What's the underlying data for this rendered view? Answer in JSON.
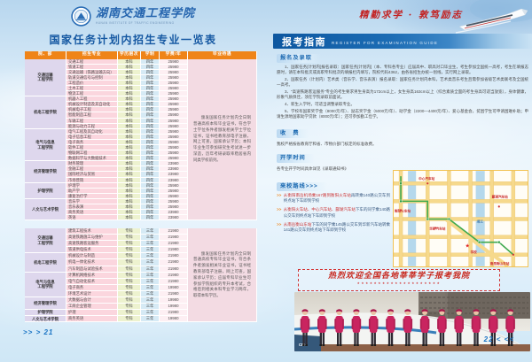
{
  "left_page": {
    "logo": {
      "name": "湖南交通工程学院",
      "subtitle": "HUNAN INSTITUTE OF TRAFFIC ENGINEERING"
    },
    "title": "国家任务计划内招生专业一览表",
    "table_headers": [
      "院、部",
      "招生专业",
      "学历层次",
      "学制",
      "学费/年",
      "毕业待遇"
    ],
    "undergrad_groups": [
      {
        "college": "交通运输\n工程学院",
        "majors": [
          [
            "交通工程",
            "本科",
            "四年",
            "25980"
          ],
          [
            "铁道工程",
            "本科",
            "四年",
            "25980"
          ],
          [
            "交通运输（铁路运输方向）",
            "本科",
            "四年",
            "25980"
          ],
          [
            "轨道交通信号与控制",
            "本科",
            "四年",
            "25980"
          ],
          [
            "工程造价",
            "本科",
            "四年",
            "25980"
          ],
          [
            "土木工程",
            "本科",
            "四年",
            "25980"
          ],
          [
            "物流工程",
            "本科",
            "四年",
            "25980"
          ]
        ]
      },
      {
        "college": "机电工程学院",
        "majors": [
          [
            "机器人工程",
            "本科",
            "四年",
            "25980"
          ],
          [
            "机械设计制造及其自动化",
            "本科",
            "四年",
            "25980"
          ],
          [
            "机械电子工程",
            "本科",
            "四年",
            "25980"
          ],
          [
            "智能制造工程",
            "本科",
            "四年",
            "25980"
          ],
          [
            "车辆工程",
            "本科",
            "四年",
            "25980"
          ],
          [
            "能源与动力工程",
            "本科",
            "四年",
            "25980"
          ]
        ]
      },
      {
        "college": "电气与信息\n工程学院",
        "majors": [
          [
            "电气工程及其自动化",
            "本科",
            "四年",
            "25980"
          ],
          [
            "电子信息工程",
            "本科",
            "四年",
            "25980"
          ],
          [
            "电子商务",
            "本科",
            "四年",
            "25980"
          ],
          [
            "软件工程",
            "本科",
            "四年",
            "25980"
          ],
          [
            "物联网工程",
            "本科",
            "四年",
            "25980"
          ],
          [
            "数据科学与大数据技术",
            "本科",
            "四年",
            "25980"
          ]
        ]
      },
      {
        "college": "经济管理学院",
        "majors": [
          [
            "财务管理",
            "本科",
            "四年",
            "23980"
          ],
          [
            "金融工程",
            "本科",
            "四年",
            "23980"
          ],
          [
            "国际经济与贸易",
            "本科",
            "四年",
            "23980"
          ],
          [
            "市场营销",
            "本科",
            "四年",
            "23980"
          ]
        ]
      },
      {
        "college": "护理学院",
        "majors": [
          [
            "护理学",
            "本科",
            "四年",
            "25980"
          ],
          [
            "助产学",
            "本科",
            "四年",
            "25980"
          ],
          [
            "康复治疗学",
            "本科",
            "四年",
            "25980"
          ]
        ]
      },
      {
        "college": "人文与艺术学院",
        "majors": [
          [
            "音乐学",
            "本科",
            "四年",
            "25980"
          ],
          [
            "音乐表演",
            "本科",
            "四年",
            "25980"
          ],
          [
            "商务英语",
            "本科",
            "四年",
            "23980"
          ],
          [
            "英语",
            "本科",
            "四年",
            "23980"
          ]
        ]
      }
    ],
    "undergrad_note": "颁发国家任务计划内全日制普通高校本科毕业证书，符合学士学位条件者颁发相关学士学位证书，证书经教育部电子注册，网上可查，国家承认学历；本科毕业生可参加研究生考试进一步深造，历年考研录取率稳居省内同类学校前列。",
    "junior_groups": [
      {
        "college": "交通运输\n工程学院",
        "majors": [
          [
            "建筑工程技术",
            "专科",
            "三年",
            "21980"
          ],
          [
            "高速铁路施工与维护",
            "专科",
            "三年",
            "21980"
          ],
          [
            "高速铁路客运服务",
            "专科",
            "三年",
            "21980"
          ],
          [
            "铁道供电技术",
            "专科",
            "三年",
            "21980"
          ]
        ]
      },
      {
        "college": "机电工程学院",
        "majors": [
          [
            "机械设计与制造",
            "专科",
            "三年",
            "21980"
          ],
          [
            "机电一体化技术",
            "专科",
            "三年",
            "21980"
          ],
          [
            "汽车制造与试验技术",
            "专科",
            "三年",
            "21980"
          ]
        ]
      },
      {
        "college": "电气与信息\n工程学院",
        "majors": [
          [
            "计算机网络技术",
            "专科",
            "三年",
            "21980"
          ],
          [
            "电气自动化技术",
            "专科",
            "三年",
            "21980"
          ],
          [
            "电子商务",
            "专科",
            "三年",
            "19980"
          ],
          [
            "环境艺术设计",
            "专科",
            "三年",
            "21980"
          ]
        ]
      },
      {
        "college": "经济管理学院",
        "majors": [
          [
            "大数据与会计",
            "专科",
            "三年",
            "19980"
          ],
          [
            "工商企业管理",
            "专科",
            "三年",
            "19980"
          ]
        ]
      },
      {
        "college": "护理学院",
        "majors": [
          [
            "护理",
            "专科",
            "三年",
            "21980"
          ]
        ]
      },
      {
        "college": "人文与艺术学院",
        "majors": [
          [
            "商务英语",
            "专科",
            "三年",
            "19980"
          ]
        ]
      }
    ],
    "junior_note": "颁发国家任务计划内全日制普通高校专科毕业证书，符合条件者颁发相关毕业证书，证书经教育部电子注册，网上可查，国家承认学历；应届专科毕业生可参加学院组织的专升本考试，合格后到相关本科专业学习两年，取得本科学历。",
    "page_number": ">> > 21"
  },
  "right_page": {
    "motto": "精勤求学 · 敦笃励志",
    "guide_title": "报考指南",
    "guide_subtitle": "REGISTER FOR EXAMINATION GUIDE",
    "sections": {
      "enroll_title": "报名及录取",
      "enroll_items": [
        "1、国家任务[计划内]报名录取：国家任务[计划内]（本、专科各专业）应届高中、职高对口毕业生，考生参加全国统一高考，考生在填报志愿时，请在本科批次或高职专科批次的填报栏内填写，院校代码4362，由各省招生办统一划线，实行网上录取。",
        "2、国家任务（计划内）艺术类（音乐学、音乐表演）报名录取：国家任务计划内本科，艺术类音乐考生且需参加省级艺术类联考及全国统一高考。",
        "3、“高速铁路客运服务”专业的考生要求男生身高为172cm以上，女生身高163cm以上（综合素质全面的考生身高可适当放宽），身体健康，形象气质俱佳，须在学院录取前面试。",
        "4、新生入学时，可适当调整录取专业。",
        "5、学校有国家奖学金（8000元/年）、励志奖学金（5000元/年）、助学金（2200—4400元/年）、爱心基金会，贫困学生可申请困难补助；申请生源地国家助学贷款（8000元/年）；还可参加勤工俭学。"
      ],
      "fee_title": "收　费",
      "fee_text": "我校严格按省教育厅和省、市物价部门核定的标准收费。",
      "start_title": "开学时间",
      "start_text": "各专业开学时间具体详见《录取通知书》",
      "route_title": "来校路线>>>"
    },
    "route_marker": ">>",
    "routes": [
      {
        "highlight": "从衡阳南岳机场乘167路到衡阳火车站",
        "rest": "再转乘140路公交车到终点站下车即到学校"
      },
      {
        "highlight": "从衡阳火车站、中心汽车站、酃湖汽车站",
        "rest": "下车的同学乘140路公交车到终点站下车即到学校"
      },
      {
        "highlight": "从南岳衡山东站",
        "rest": "下车的同学乘145路公交车到华新汽车站转乘141路公交车到终点站下车即到学校"
      }
    ],
    "map_labels": [
      "中心汽车站",
      "衡阳火车站",
      "华新汽车站",
      "湘江",
      "酃湖汽车站",
      "南岳衡山东站",
      "学校"
    ],
    "banner": "热烈欢迎全国各地莘莘学子报考我院",
    "banner_stars": "★★★★★★★★★★★★★★★★★★★★",
    "photo": {
      "train_label": "CRH",
      "figure_count": 13
    },
    "page_number": "22 < <<"
  }
}
